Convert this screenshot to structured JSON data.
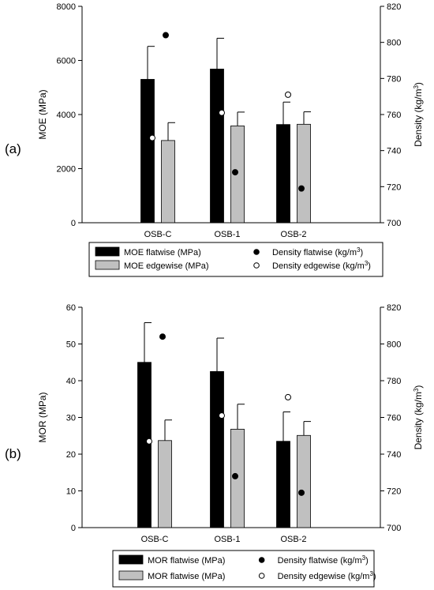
{
  "chart_data": [
    {
      "type": "bar",
      "panel_label": "(a)",
      "categories": [
        "OSB-C",
        "OSB-1",
        "OSB-2"
      ],
      "ylabel": "MOE (MPa)",
      "y2label": "Density (kg/m3)",
      "y2label_main": "Density (kg/m",
      "y2label_sup": "3",
      "y2label_end": ")",
      "ylim": [
        0,
        8000
      ],
      "yticks": [
        0,
        2000,
        4000,
        6000,
        8000
      ],
      "y2lim": [
        700,
        820
      ],
      "y2ticks": [
        700,
        720,
        740,
        760,
        780,
        800,
        820
      ],
      "bars": [
        {
          "name": "MOE flatwise (MPa)",
          "color": "#000000",
          "values": [
            5300,
            5680,
            3630
          ],
          "errors": [
            1220,
            1140,
            830
          ]
        },
        {
          "name": "MOE edgewise (MPa)",
          "color": "#c0c0c0",
          "values": [
            3040,
            3580,
            3640
          ],
          "errors": [
            660,
            510,
            460
          ]
        }
      ],
      "points": [
        {
          "name": "Density flatwise (kg/m3)",
          "fill": "#000000",
          "values": [
            804,
            728,
            719
          ]
        },
        {
          "name": "Density edgewise (kg/m3)",
          "fill": "#ffffff",
          "values": [
            747,
            761,
            771
          ]
        }
      ],
      "legend": [
        {
          "text": "MOE flatwise (MPa)",
          "kind": "bar",
          "color": "#000000"
        },
        {
          "text": "MOE edgewise (MPa)",
          "kind": "bar",
          "color": "#c0c0c0"
        },
        {
          "text": "Density flatwise (kg/m",
          "sup": "3",
          "end": ")",
          "kind": "dot",
          "color": "#000000"
        },
        {
          "text": "Density edgewise (kg/m",
          "sup": "3",
          "end": ")",
          "kind": "dot",
          "color": "#ffffff"
        }
      ]
    },
    {
      "type": "bar",
      "panel_label": "(b)",
      "categories": [
        "OSB-C",
        "OSB-1",
        "OSB-2"
      ],
      "ylabel": "MOR (MPa)",
      "y2label": "Density (kg/m3)",
      "y2label_main": "Density (kg/m",
      "y2label_sup": "3",
      "y2label_end": ")",
      "ylim": [
        0,
        60
      ],
      "yticks": [
        0,
        10,
        20,
        30,
        40,
        50,
        60
      ],
      "y2lim": [
        700,
        820
      ],
      "y2ticks": [
        700,
        720,
        740,
        760,
        780,
        800,
        820
      ],
      "bars": [
        {
          "name": "MOR flatwise (MPa)",
          "color": "#000000",
          "values": [
            45.0,
            42.5,
            23.5
          ],
          "errors": [
            10.8,
            9.1,
            8.0
          ]
        },
        {
          "name": "MOR flatwise (MPa)",
          "color": "#c0c0c0",
          "values": [
            23.7,
            26.8,
            25.1
          ],
          "errors": [
            5.6,
            6.8,
            3.8
          ]
        }
      ],
      "points": [
        {
          "name": "Density flatwise (kg/m3)",
          "fill": "#000000",
          "values": [
            804,
            728,
            719
          ]
        },
        {
          "name": "Density edgewise (kg/m3)",
          "fill": "#ffffff",
          "values": [
            747,
            761,
            771
          ]
        }
      ],
      "legend": [
        {
          "text": "MOR flatwise (MPa)",
          "kind": "bar",
          "color": "#000000"
        },
        {
          "text": "MOR flatwise (MPa)",
          "kind": "bar",
          "color": "#c0c0c0"
        },
        {
          "text": "Density flatwise (kg/m",
          "sup": "3",
          "end": ")",
          "kind": "dot",
          "color": "#000000"
        },
        {
          "text": "Density edgewise (kg/m",
          "sup": "3",
          "end": ")",
          "kind": "dot",
          "color": "#ffffff"
        }
      ]
    }
  ]
}
